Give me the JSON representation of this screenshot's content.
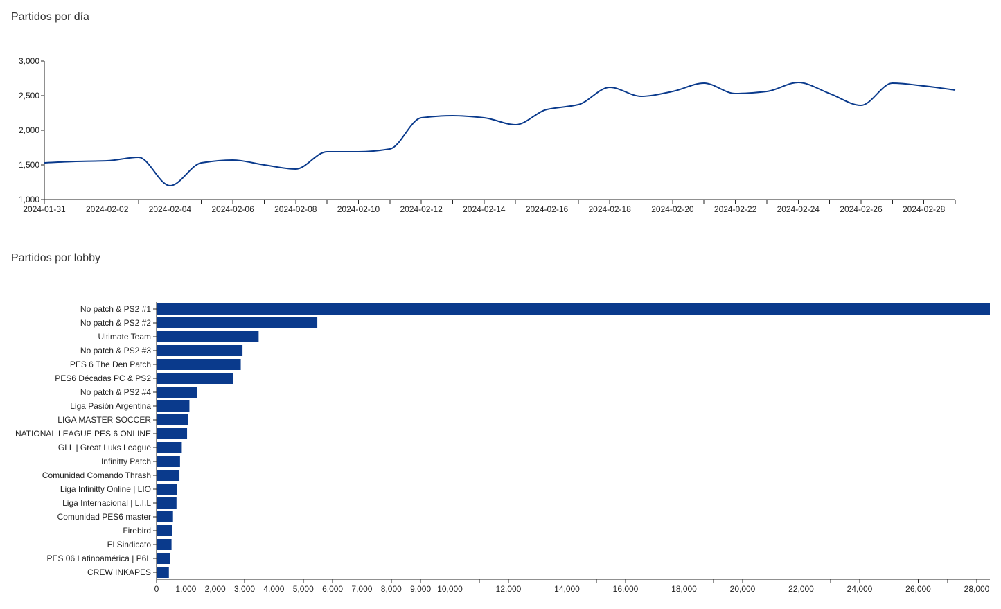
{
  "line_section": {
    "title": "Partidos por día"
  },
  "bar_section": {
    "title": "Partidos por lobby"
  },
  "colors": {
    "series": "#0a3a8c",
    "axis": "#222222"
  },
  "chart_data": [
    {
      "type": "line",
      "title": "Partidos por día",
      "xlabel": "",
      "ylabel": "",
      "x_ticks": [
        "2024-01-31",
        "2024-02-02",
        "2024-02-04",
        "2024-02-06",
        "2024-02-08",
        "2024-02-10",
        "2024-02-12",
        "2024-02-14",
        "2024-02-16",
        "2024-02-18",
        "2024-02-20",
        "2024-02-22",
        "2024-02-24",
        "2024-02-26",
        "2024-02-28"
      ],
      "y_ticks": [
        "1,000",
        "1,500",
        "2,000",
        "2,500",
        "3,000"
      ],
      "ylim": [
        1000,
        3000
      ],
      "grid": false,
      "series": [
        {
          "x": [
            "2024-01-31",
            "2024-02-01",
            "2024-02-02",
            "2024-02-03",
            "2024-02-04",
            "2024-02-05",
            "2024-02-06",
            "2024-02-07",
            "2024-02-08",
            "2024-02-09",
            "2024-02-10",
            "2024-02-11",
            "2024-02-12",
            "2024-02-13",
            "2024-02-14",
            "2024-02-15",
            "2024-02-16",
            "2024-02-17",
            "2024-02-18",
            "2024-02-19",
            "2024-02-20",
            "2024-02-21",
            "2024-02-22",
            "2024-02-23",
            "2024-02-24",
            "2024-02-25",
            "2024-02-26",
            "2024-02-27",
            "2024-02-28",
            "2024-02-29"
          ],
          "values": [
            1530,
            1550,
            1560,
            1610,
            1200,
            1530,
            1570,
            1500,
            1440,
            1690,
            1690,
            1730,
            2180,
            2210,
            2180,
            2080,
            2300,
            2370,
            2620,
            2490,
            2560,
            2680,
            2530,
            2560,
            2690,
            2530,
            2360,
            2680,
            2640,
            2580
          ]
        }
      ]
    },
    {
      "type": "bar",
      "orientation": "horizontal",
      "title": "Partidos por lobby",
      "xlabel": "",
      "ylabel": "",
      "xlim": [
        0,
        28400
      ],
      "x_ticks": [
        "0",
        "1,000",
        "2,000",
        "3,000",
        "4,000",
        "5,000",
        "6,000",
        "7,000",
        "8,000",
        "9,000",
        "10,000",
        "12,000",
        "14,000",
        "16,000",
        "18,000",
        "20,000",
        "22,000",
        "24,000",
        "26,000",
        "28,000"
      ],
      "grid": false,
      "categories": [
        "No patch & PS2 #1",
        "No patch & PS2 #2",
        "Ultimate Team",
        "No patch & PS2 #3",
        "PES 6 The Den Patch",
        "PES6 Décadas PC & PS2",
        "No patch & PS2 #4",
        "Liga Pasión Argentina",
        "LIGA MASTER SOCCER",
        "NATIONAL LEAGUE PES 6 ONLINE",
        "GLL | Great Luks League",
        "Infinitty Patch",
        "Comunidad Comando Thrash",
        "Liga Infinitty Online | LIO",
        "Liga Internacional | L.I.L",
        "Comunidad PES6 master",
        "Firebird",
        "El Sindicato",
        "PES 06 Latinoamérica | P6L",
        "CREW INKAPES"
      ],
      "values": [
        28500,
        5480,
        3480,
        2930,
        2870,
        2620,
        1380,
        1120,
        1080,
        1040,
        860,
        800,
        780,
        700,
        680,
        560,
        540,
        510,
        470,
        420
      ]
    }
  ]
}
